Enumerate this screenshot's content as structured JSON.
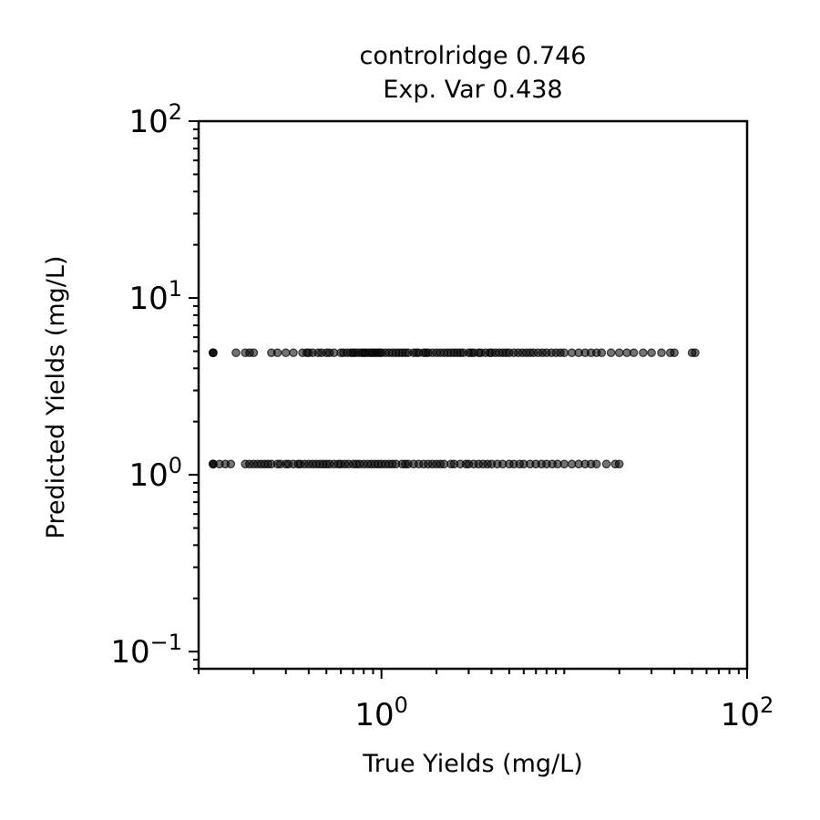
{
  "chart_data": {
    "type": "scatter",
    "title_lines": [
      "controlridge 0.746",
      "Exp. Var 0.438"
    ],
    "xlabel": "True Yields (mg/L)",
    "ylabel": "Predicted Yields (mg/L)",
    "xscale": "log",
    "yscale": "log",
    "xlim": [
      0.1,
      100
    ],
    "ylim": [
      0.08,
      100
    ],
    "x_ticks": [
      {
        "value": 1,
        "base": "10",
        "exp": "0"
      },
      {
        "value": 100,
        "base": "10",
        "exp": "2"
      }
    ],
    "y_ticks": [
      {
        "value": 0.1,
        "base": "10",
        "exp": "−1"
      },
      {
        "value": 1,
        "base": "10",
        "exp": "0"
      },
      {
        "value": 10,
        "base": "10",
        "exp": "1"
      },
      {
        "value": 100,
        "base": "10",
        "exp": "2"
      }
    ],
    "grid": false,
    "marker_color": "#000000",
    "series": [
      {
        "values_y": 4.9,
        "x": [
          0.12,
          0.12,
          0.12,
          0.16,
          0.18,
          0.19,
          0.2,
          0.25,
          0.27,
          0.3,
          0.33,
          0.37,
          0.39,
          0.4,
          0.42,
          0.45,
          0.47,
          0.5,
          0.52,
          0.55,
          0.6,
          0.62,
          0.65,
          0.68,
          0.7,
          0.72,
          0.75,
          0.78,
          0.8,
          0.82,
          0.85,
          0.88,
          0.9,
          0.93,
          0.95,
          0.98,
          1.0,
          1.05,
          1.1,
          1.15,
          1.2,
          1.25,
          1.3,
          1.35,
          1.4,
          1.5,
          1.55,
          1.6,
          1.7,
          1.75,
          1.8,
          1.9,
          2.0,
          2.1,
          2.2,
          2.3,
          2.4,
          2.5,
          2.6,
          2.7,
          2.8,
          3.0,
          3.1,
          3.2,
          3.4,
          3.5,
          3.7,
          3.9,
          4.0,
          4.2,
          4.4,
          4.6,
          4.8,
          5.0,
          5.3,
          5.6,
          5.9,
          6.2,
          6.5,
          6.8,
          7.2,
          7.6,
          8.0,
          8.5,
          9.0,
          9.5,
          10,
          11,
          12,
          13,
          14,
          15,
          16,
          18,
          20,
          22,
          24,
          27,
          30,
          34,
          38,
          40,
          50,
          52
        ]
      },
      {
        "values_y": 1.15,
        "x": [
          0.12,
          0.12,
          0.12,
          0.13,
          0.14,
          0.15,
          0.18,
          0.19,
          0.2,
          0.21,
          0.22,
          0.23,
          0.24,
          0.25,
          0.27,
          0.28,
          0.3,
          0.31,
          0.33,
          0.35,
          0.36,
          0.38,
          0.4,
          0.42,
          0.44,
          0.46,
          0.48,
          0.5,
          0.52,
          0.55,
          0.58,
          0.6,
          0.63,
          0.66,
          0.7,
          0.73,
          0.76,
          0.8,
          0.84,
          0.88,
          0.92,
          0.96,
          1.0,
          1.05,
          1.1,
          1.15,
          1.2,
          1.3,
          1.35,
          1.4,
          1.5,
          1.6,
          1.7,
          1.8,
          1.9,
          2.0,
          2.1,
          2.2,
          2.4,
          2.5,
          2.7,
          2.9,
          3.0,
          3.2,
          3.4,
          3.6,
          3.8,
          4.0,
          4.3,
          4.6,
          5.0,
          5.3,
          5.7,
          6.0,
          6.5,
          7.0,
          7.5,
          8.0,
          8.6,
          9.2,
          10,
          11,
          12,
          13,
          14,
          15,
          17,
          19,
          20
        ]
      }
    ]
  }
}
